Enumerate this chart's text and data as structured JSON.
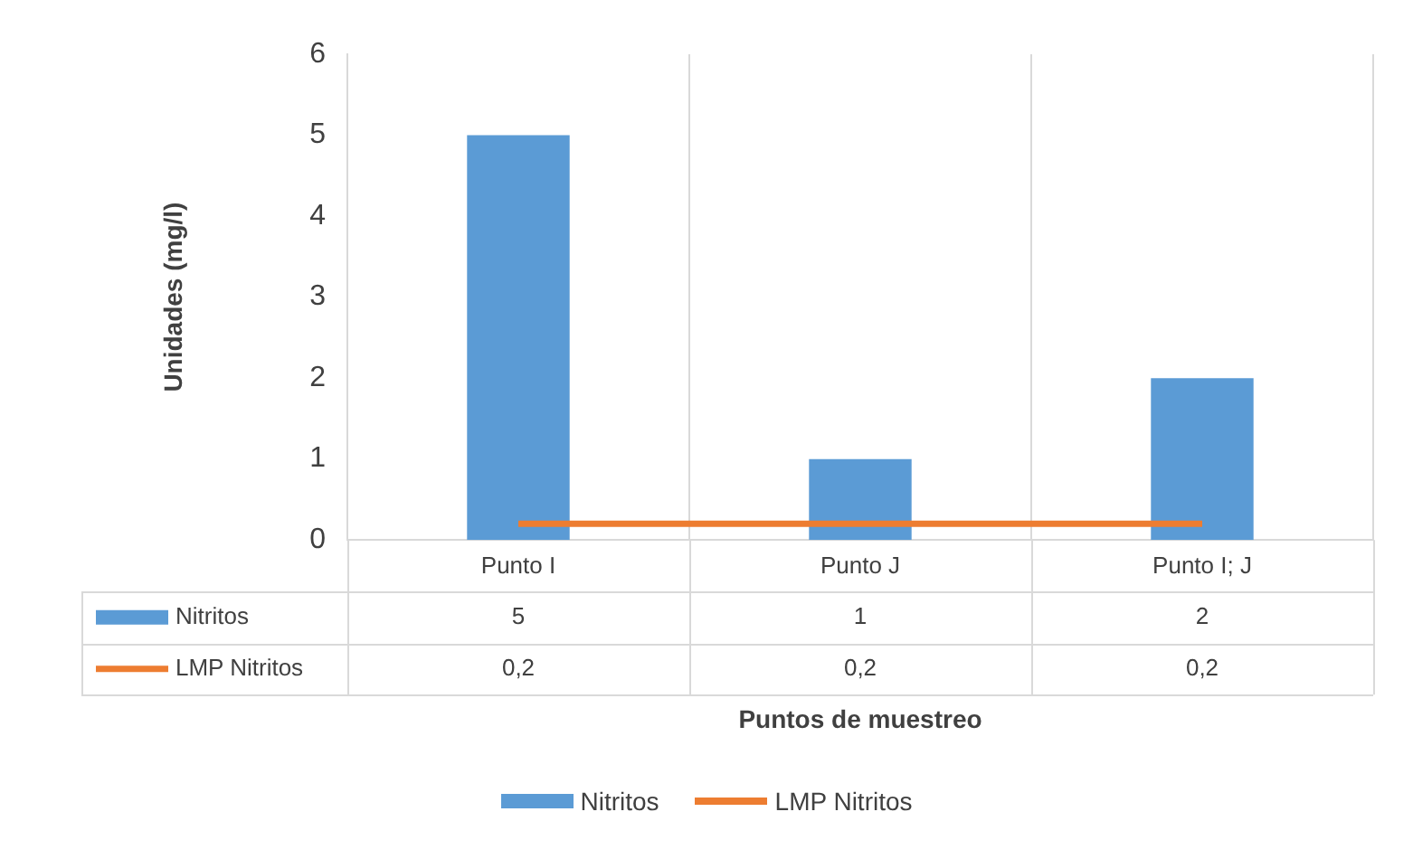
{
  "chart_data": {
    "type": "bar",
    "xlabel": "Puntos de muestreo",
    "ylabel": "Unidades (mg/l)",
    "categories": [
      "Punto I",
      "Punto J",
      "Punto I; J"
    ],
    "series": [
      {
        "name": "Nitritos",
        "color": "#5b9bd5",
        "values": [
          5,
          1,
          2
        ],
        "value_labels": [
          "5",
          "1",
          "2"
        ]
      },
      {
        "name": "LMP Nitritos",
        "type": "line",
        "color": "#ed7d31",
        "values": [
          0.2,
          0.2,
          0.2
        ],
        "value_labels": [
          "0,2",
          "0,2",
          "0,2"
        ],
        "marker": "none"
      }
    ],
    "ylim": [
      0,
      6
    ],
    "yticks": [
      0,
      1,
      2,
      3,
      4,
      5,
      6
    ],
    "grid": "x",
    "legend": "bottom"
  }
}
